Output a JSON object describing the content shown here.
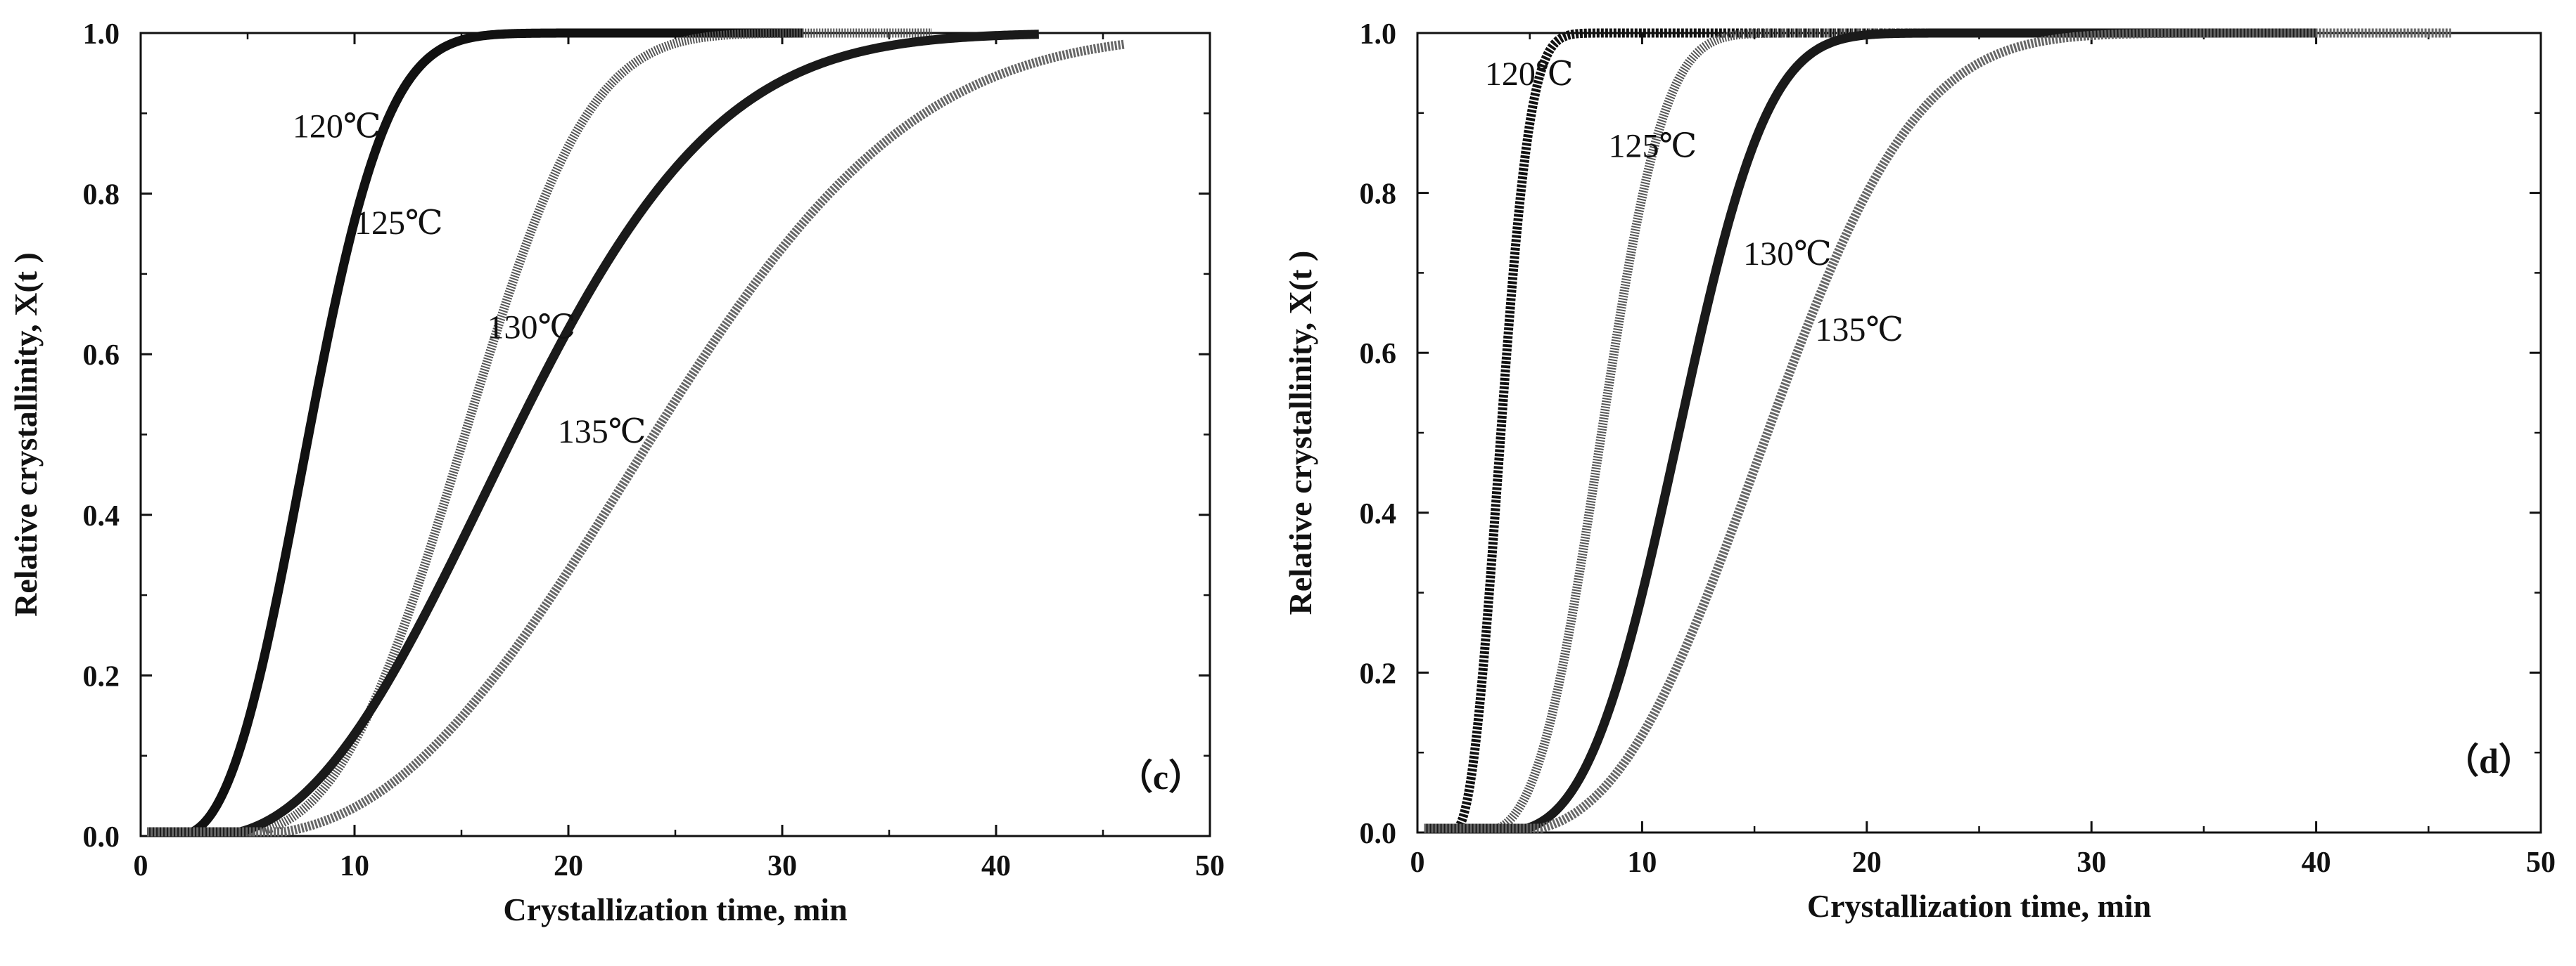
{
  "chart_data": [
    {
      "type": "line",
      "panel_label": "（c）",
      "xlabel": "Crystallization time, min",
      "ylabel": "Relative crystallinity, X(t )",
      "xlim": [
        0,
        50
      ],
      "ylim": [
        0,
        1.0
      ],
      "x_ticks": [
        "0",
        "10",
        "20",
        "30",
        "40",
        "50"
      ],
      "y_ticks": [
        "0.0",
        "0.2",
        "0.4",
        "0.6",
        "0.8",
        "1.0"
      ],
      "series": [
        {
          "name": "120℃",
          "color": "#111111",
          "dash": "",
          "k": 0.0062,
          "n": 2.55,
          "t0": 1.5,
          "x_end": 31,
          "label_at": [
            7.1,
            0.87
          ]
        },
        {
          "name": "125℃",
          "color": "#555555",
          "dash": "2 2",
          "k": 0.0003,
          "n": 3.1,
          "t0": 3.0,
          "x_end": 37,
          "label_at": [
            10.0,
            0.75
          ]
        },
        {
          "name": "130℃",
          "color": "#1a1a1a",
          "dash": "",
          "k": 0.0017,
          "n": 2.25,
          "t0": 3.0,
          "x_end": 42,
          "label_at": [
            16.2,
            0.62
          ]
        },
        {
          "name": "135℃",
          "color": "#666666",
          "dash": "3 2",
          "k": 0.00045,
          "n": 2.45,
          "t0": 4.0,
          "x_end": 46,
          "label_at": [
            19.5,
            0.49
          ]
        }
      ]
    },
    {
      "type": "line",
      "panel_label": "（d）",
      "xlabel": "Crystallization time, min",
      "ylabel": "Relative crystallinity, X(t )",
      "xlim": [
        0,
        50
      ],
      "ylim": [
        0,
        1.0
      ],
      "x_ticks": [
        "0",
        "10",
        "20",
        "30",
        "40",
        "50"
      ],
      "y_ticks": [
        "0.0",
        "0.2",
        "0.4",
        "0.6",
        "0.8",
        "1.0"
      ],
      "series": [
        {
          "name": "120℃",
          "color": "#111111",
          "dash": "4 2",
          "k": 0.095,
          "n": 2.5,
          "t0": 1.5,
          "x_end": 25,
          "label_at": [
            3.0,
            0.935
          ]
        },
        {
          "name": "125℃",
          "color": "#555555",
          "dash": "2 2",
          "k": 0.00375,
          "n": 3.0,
          "t0": 2.5,
          "x_end": 36,
          "label_at": [
            8.5,
            0.845
          ]
        },
        {
          "name": "130℃",
          "color": "#1a1a1a",
          "dash": "",
          "k": 0.0007,
          "n": 3.2,
          "t0": 3.0,
          "x_end": 40,
          "label_at": [
            14.5,
            0.71
          ]
        },
        {
          "name": "135℃",
          "color": "#666666",
          "dash": "3 2",
          "k": 0.00083,
          "n": 2.7,
          "t0": 3.5,
          "x_end": 46,
          "label_at": [
            17.7,
            0.615
          ]
        }
      ]
    }
  ]
}
